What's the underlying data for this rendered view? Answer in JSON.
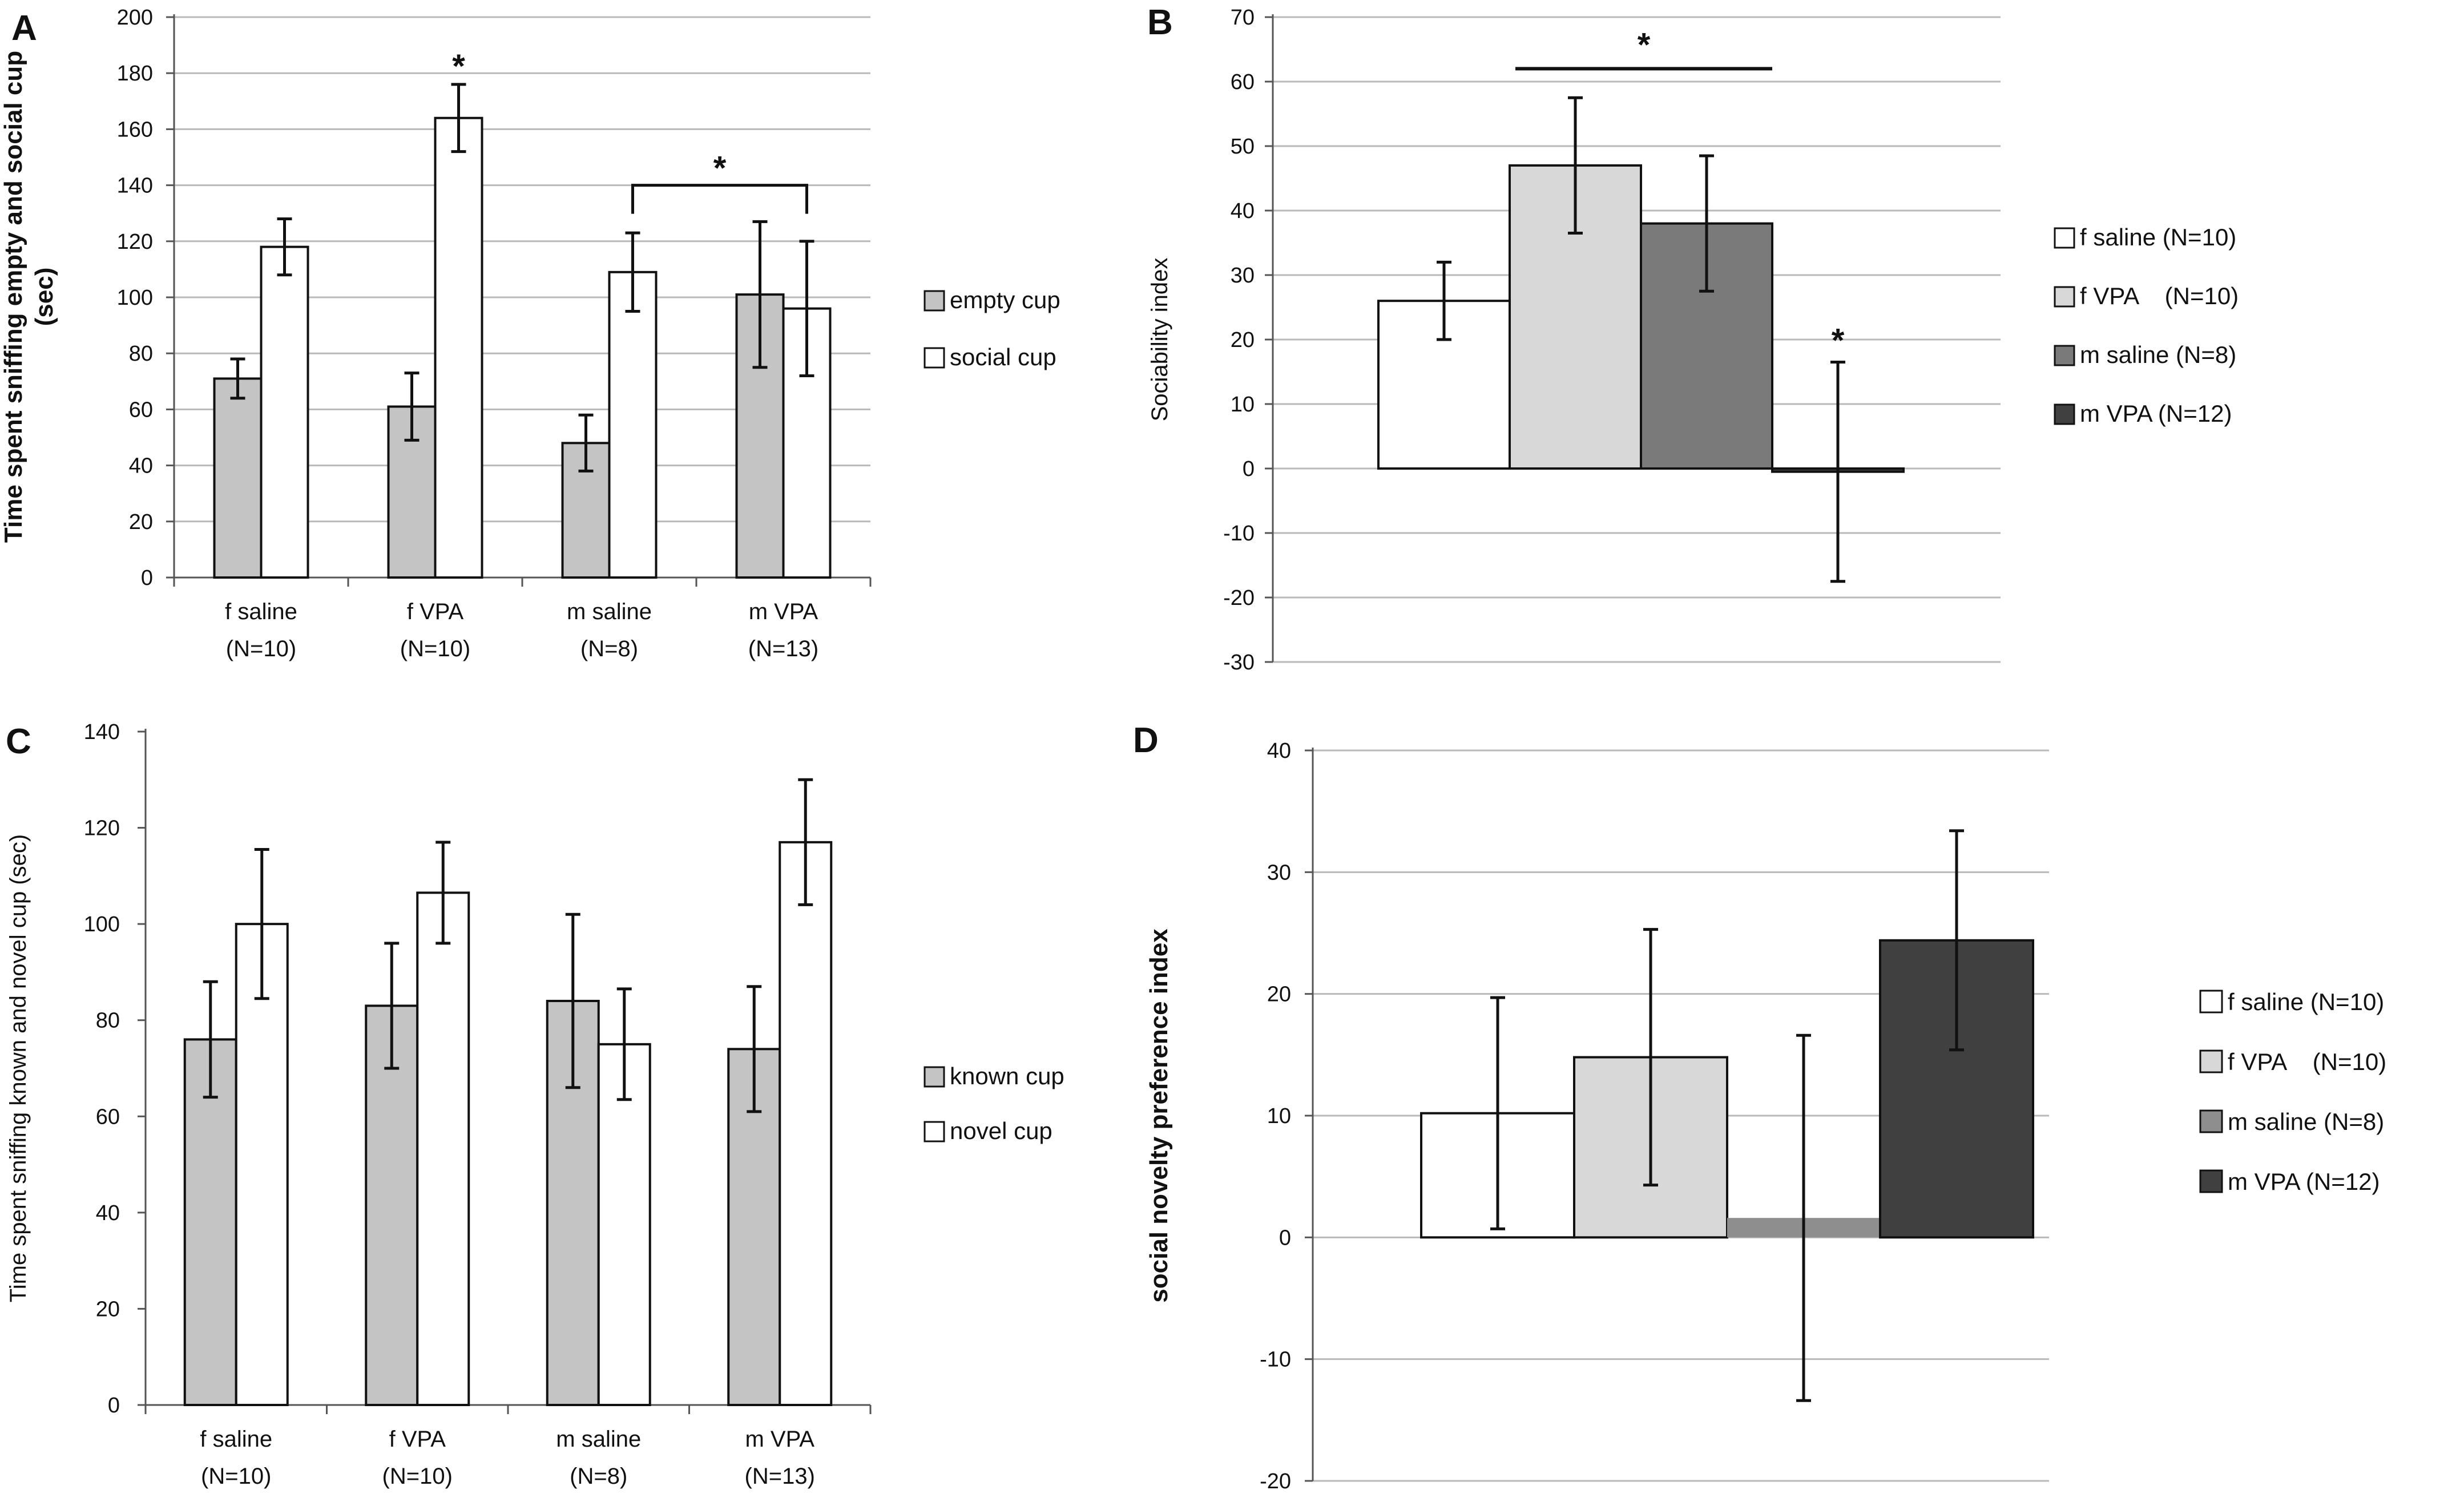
{
  "colors": {
    "white": "#ffffff",
    "light": "#d8d8d8",
    "empty": "#c4c4c4",
    "mid": "#7a7a7a",
    "midD": "#8e8e8e",
    "dark": "#404040",
    "grid": "#b9b9b9",
    "axis": "#555555",
    "ink": "#111111"
  },
  "chart_data": [
    {
      "id": "A",
      "type": "bar",
      "label": "A",
      "ylabel": "Time spent sniffing empty and social cup (sec)",
      "ylabel_lines": [
        "Time spent sniffing empty and social cup",
        "(sec)"
      ],
      "ylim": [
        0,
        200
      ],
      "yticks": [
        0,
        20,
        40,
        60,
        80,
        100,
        120,
        140,
        160,
        180,
        200
      ],
      "categories": [
        [
          "f saline",
          "(N=10)"
        ],
        [
          "f VPA",
          "(N=10)"
        ],
        [
          "m saline",
          "(N=8)"
        ],
        [
          "m VPA",
          "(N=13)"
        ]
      ],
      "series": [
        {
          "name": "empty cup",
          "color": "#c4c4c4",
          "values": [
            71,
            61,
            48,
            101
          ],
          "errors": [
            7,
            12,
            10,
            26
          ]
        },
        {
          "name": "social cup",
          "color": "#ffffff",
          "values": [
            118,
            164,
            109,
            96
          ],
          "errors": [
            10,
            12,
            14,
            24
          ]
        }
      ],
      "annotations": [
        {
          "text": "*",
          "type": "star",
          "cat": 1,
          "series": 1,
          "y": 176
        },
        {
          "text": "*",
          "type": "bracket",
          "from_cat": 2,
          "to_cat": 3,
          "series": 1,
          "y": 140
        }
      ],
      "legend": {
        "position": "right",
        "items": [
          "empty cup",
          "social cup"
        ]
      }
    },
    {
      "id": "B",
      "type": "bar",
      "label": "B",
      "ylabel": "Sociability index",
      "ylim": [
        -30,
        70
      ],
      "yticks": [
        -30,
        -20,
        -10,
        0,
        10,
        20,
        30,
        40,
        50,
        60,
        70
      ],
      "categories": [
        "f saline",
        "f VPA",
        "m saline",
        "m VPA"
      ],
      "series": [
        {
          "name": "Sociability index",
          "values": [
            26,
            47,
            38,
            -0.5
          ],
          "errors": [
            6,
            10.5,
            10.5,
            17
          ],
          "colors": [
            "#ffffff",
            "#d8d8d8",
            "#7a7a7a",
            "#404040"
          ]
        }
      ],
      "annotations": [
        {
          "text": "*",
          "type": "line",
          "from_cat": 1,
          "to_cat": 2,
          "y": 62
        },
        {
          "text": "*",
          "type": "star",
          "cat": 3,
          "y": 16.5
        }
      ],
      "legend": {
        "position": "right",
        "items": [
          "f saline (N=10)",
          "f VPA    (N=10)",
          "m saline (N=8)",
          "m VPA (N=12)"
        ]
      }
    },
    {
      "id": "C",
      "type": "bar",
      "label": "C",
      "ylabel": "Time spent sniffing known and novel cup (sec)",
      "ylim": [
        0,
        140
      ],
      "yticks": [
        0,
        20,
        40,
        60,
        80,
        100,
        120,
        140
      ],
      "categories": [
        [
          "f saline",
          "(N=10)"
        ],
        [
          "f VPA",
          "(N=10)"
        ],
        [
          "m saline",
          "(N=8)"
        ],
        [
          "m VPA",
          "(N=13)"
        ]
      ],
      "series": [
        {
          "name": "known cup",
          "color": "#c4c4c4",
          "values": [
            76,
            83,
            84,
            74
          ],
          "errors": [
            12,
            13,
            18,
            13
          ]
        },
        {
          "name": "novel cup",
          "color": "#ffffff",
          "values": [
            100,
            106.5,
            75,
            117
          ],
          "errors": [
            15.5,
            10.5,
            11.5,
            13
          ]
        }
      ],
      "legend": {
        "position": "right",
        "items": [
          "known cup",
          "novel cup"
        ]
      }
    },
    {
      "id": "D",
      "type": "bar",
      "label": "D",
      "ylabel": "social novelty preference index",
      "ylim": [
        -20,
        40
      ],
      "yticks": [
        -20,
        -10,
        0,
        10,
        20,
        30,
        40
      ],
      "categories": [
        "f saline",
        "f VPA",
        "m saline",
        "m VPA"
      ],
      "series": [
        {
          "name": "social novelty preference index",
          "values": [
            10.2,
            14.8,
            1.6,
            24.4
          ],
          "errors": [
            9.5,
            10.5,
            15,
            9
          ],
          "colors": [
            "#ffffff",
            "#d8d8d8",
            "#8e8e8e",
            "#404040"
          ]
        }
      ],
      "legend": {
        "position": "right",
        "items": [
          "f saline (N=10)",
          "f VPA    (N=10)",
          "m saline (N=8)",
          "m VPA (N=12)"
        ]
      }
    }
  ]
}
